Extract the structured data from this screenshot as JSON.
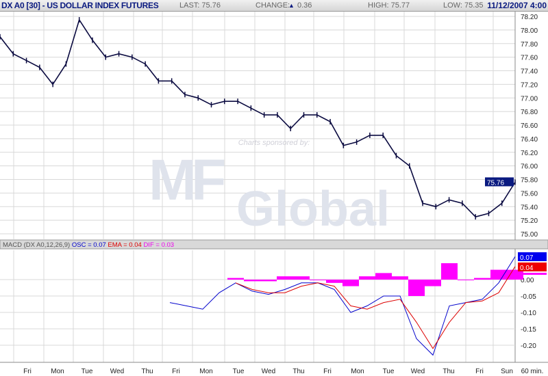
{
  "header": {
    "title": "DX A0 [30] - US DOLLAR INDEX FUTURES",
    "last": "LAST: 75.76",
    "change_label": "CHANGE:",
    "change_value": "0.36",
    "high": "HIGH: 75.77",
    "low": "LOW: 75.35",
    "datetime": "11/12/2007 4:00",
    "change_icon": "triangle-up-icon"
  },
  "sponsor": {
    "text": "Charts sponsored by:",
    "logo_text": "MF Global"
  },
  "chart_data": [
    {
      "type": "line",
      "ylim": [
        75.0,
        78.2
      ],
      "yticks": [
        "78.20",
        "78.00",
        "77.80",
        "77.60",
        "77.40",
        "77.20",
        "77.00",
        "76.80",
        "76.60",
        "76.40",
        "76.20",
        "76.00",
        "75.80",
        "75.60",
        "75.40",
        "75.20",
        "75.00"
      ],
      "last_label": "75.76",
      "grid": true,
      "values": [
        77.9,
        77.65,
        77.55,
        77.45,
        77.2,
        77.5,
        78.15,
        77.85,
        77.6,
        77.65,
        77.6,
        77.5,
        77.25,
        77.25,
        77.05,
        77.0,
        76.9,
        76.95,
        76.95,
        76.85,
        76.75,
        76.75,
        76.55,
        76.75,
        76.75,
        76.65,
        76.3,
        76.35,
        76.45,
        76.45,
        76.15,
        76.0,
        75.45,
        75.4,
        75.5,
        75.45,
        75.25,
        75.3,
        75.45,
        75.76
      ],
      "color": "#0a0a40"
    },
    {
      "type": "line",
      "title": "MACD (DX A0,12,26,9)",
      "legend": [
        {
          "text": "OSC = 0.07",
          "color": "#0000cc"
        },
        {
          "text": "EMA = 0.04",
          "color": "#dd0000"
        },
        {
          "text": "DIF = 0.03",
          "color": "#ee00ee"
        }
      ],
      "ylim": [
        -0.25,
        0.08
      ],
      "yticks": [
        "0.00",
        "-0.05",
        "-0.10",
        "-0.15",
        "-0.20"
      ],
      "value_labels": [
        {
          "text": "0.07",
          "color": "#0000ee"
        },
        {
          "text": "0.04",
          "color": "#ee0000"
        }
      ],
      "series": [
        {
          "name": "OSC",
          "color": "#0000cc",
          "values": [
            -0.07,
            -0.08,
            -0.09,
            -0.04,
            -0.01,
            -0.035,
            -0.045,
            -0.03,
            -0.01,
            -0.01,
            -0.03,
            -0.1,
            -0.08,
            -0.05,
            -0.05,
            -0.18,
            -0.23,
            -0.08,
            -0.07,
            -0.06,
            -0.01,
            0.07
          ]
        },
        {
          "name": "EMA",
          "color": "#dd0000",
          "values": [
            null,
            null,
            null,
            null,
            -0.01,
            -0.03,
            -0.04,
            -0.04,
            -0.02,
            -0.01,
            -0.02,
            -0.08,
            -0.09,
            -0.07,
            -0.06,
            -0.13,
            -0.21,
            -0.13,
            -0.07,
            -0.065,
            -0.04,
            0.04
          ]
        },
        {
          "name": "DIF",
          "color": "#ff00ff",
          "type": "bar",
          "values": [
            null,
            null,
            null,
            null,
            0.005,
            -0.005,
            -0.005,
            0.01,
            0.01,
            0.0,
            -0.01,
            -0.02,
            0.01,
            0.02,
            0.01,
            -0.05,
            -0.02,
            0.05,
            0.0,
            0.005,
            0.03,
            0.03
          ]
        }
      ]
    }
  ],
  "xaxis": {
    "labels": [
      "Fri",
      "Mon",
      "Tue",
      "Wed",
      "Thu",
      "Fri",
      "Mon",
      "Tue",
      "Wed",
      "Thu",
      "Fri",
      "Mon",
      "Tue",
      "Wed",
      "Thu",
      "Fri",
      "Sun"
    ],
    "interval": "60 min."
  }
}
